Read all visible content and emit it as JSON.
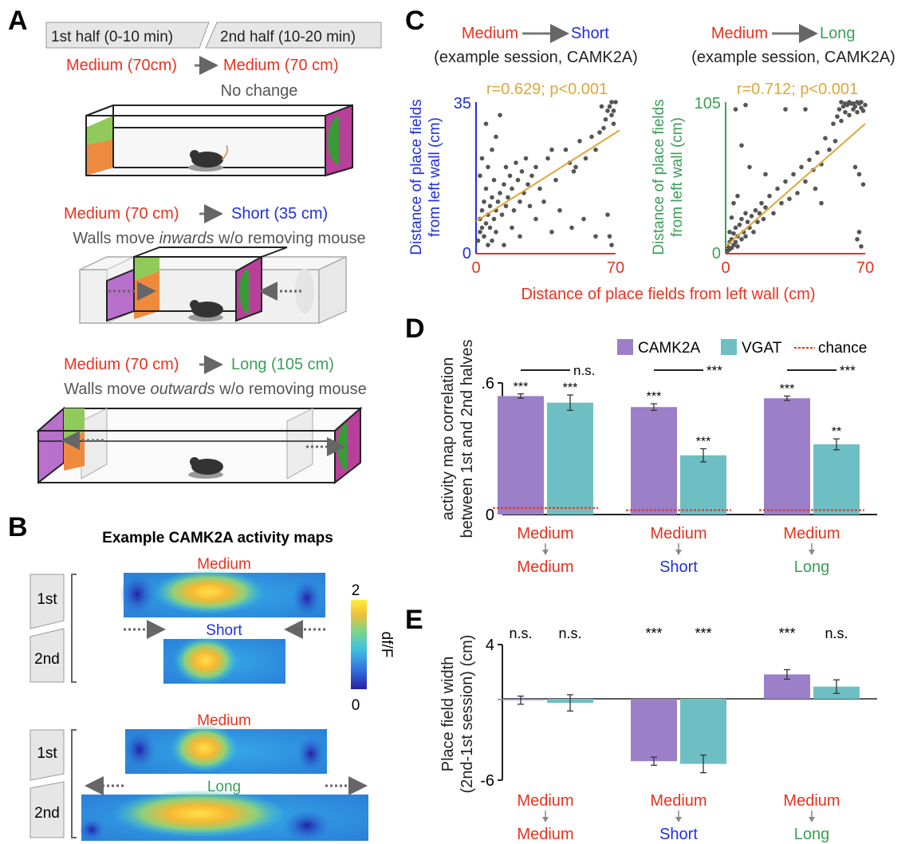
{
  "colors": {
    "red": "#e8321e",
    "blue": "#1f2fe0",
    "green": "#3a9e58",
    "gold": "#e0a736",
    "purple": "#9b7fc8",
    "teal": "#6dbfc3",
    "grey": "#555555",
    "wall_purple": "#b96fcc",
    "wall_green": "#8fca5a",
    "wall_orange": "#ee8a3e",
    "wall_magenta": "#b9409a",
    "wall_darkgreen": "#3a9a3a"
  },
  "panelA": {
    "label": "A",
    "tab1": "1st half (0-10 min)",
    "tab2": "2nd half (10-20 min)",
    "cond1_a": "Medium (70cm)",
    "cond1_b": "Medium (70 cm)",
    "cond1_desc": "No change",
    "cond2_a": "Medium (70 cm)",
    "cond2_b": "Short (35 cm)",
    "cond2_desc_1": "Walls move ",
    "cond2_desc_em": "inwards",
    "cond2_desc_2": " w/o removing mouse",
    "cond3_a": "Medium (70 cm)",
    "cond3_b": "Long (105 cm)",
    "cond3_desc_1": "Walls move ",
    "cond3_desc_em": "outwards",
    "cond3_desc_2": " w/o removing mouse"
  },
  "panelB": {
    "label": "B",
    "title": "Example CAMK2A activity maps",
    "top_label": "Medium",
    "short_label": "Short",
    "bottom_label": "Medium",
    "long_label": "Long",
    "half1": "1st",
    "half2": "2nd",
    "half3": "1st",
    "half4": "2nd",
    "cbar_max": "2",
    "cbar_min": "0",
    "cbar_label": "df/F"
  },
  "panelC": {
    "label": "C",
    "left_from": "Medium",
    "left_to": "Short",
    "right_from": "Medium",
    "right_to": "Long",
    "subtitle": "(example session, CAMK2A)",
    "left_stats": "r=0.629; p<0.001",
    "right_stats": "r=0.712; p<0.001",
    "ylabel_1": "Distance of place fields",
    "ylabel_2": "from left wall (cm)",
    "xlabel": "Distance of place fields from left wall (cm)"
  },
  "panelD": {
    "label": "D",
    "ylabel_1": "activity map correlation",
    "ylabel_2": "between 1st and 2nd halves",
    "legend_camk": "CAMK2A",
    "legend_vgat": "VGAT",
    "legend_chance": "chance",
    "sig_bars": [
      "***",
      "***",
      "***",
      "***",
      "***",
      "**"
    ],
    "sig_pairs": [
      "n.s.",
      "***",
      "***"
    ]
  },
  "panelE": {
    "label": "E",
    "ylabel_1": "Place field width",
    "ylabel_2": "(2nd-1st session) (cm)",
    "sig": [
      "n.s.",
      "n.s.",
      "***",
      "***",
      "***",
      "n.s."
    ]
  },
  "group_labels": [
    {
      "top": "Medium",
      "bottom": "Medium",
      "bottom_color": "red"
    },
    {
      "top": "Medium",
      "bottom": "Short",
      "bottom_color": "blue"
    },
    {
      "top": "Medium",
      "bottom": "Long",
      "bottom_color": "green"
    }
  ],
  "chart_data": [
    {
      "type": "scatter",
      "title": "Medium → Short (example session, CAMK2A)",
      "xlabel": "Distance of place fields from left wall (cm)",
      "ylabel": "Distance of place fields from left wall (cm)",
      "xlim": [
        0,
        70
      ],
      "ylim": [
        0,
        35
      ],
      "xticks": [
        "0",
        "70"
      ],
      "yticks": [
        "0",
        "35"
      ],
      "annotation": "r=0.629; p<0.001",
      "fit_line": {
        "x": [
          0,
          72
        ],
        "y": [
          7.5,
          28.5
        ]
      },
      "points": [
        [
          1,
          3
        ],
        [
          2,
          5
        ],
        [
          2,
          8
        ],
        [
          3,
          6
        ],
        [
          3,
          10
        ],
        [
          4,
          4
        ],
        [
          4,
          12
        ],
        [
          5,
          7
        ],
        [
          5,
          15
        ],
        [
          6,
          9
        ],
        [
          6,
          20
        ],
        [
          7,
          6
        ],
        [
          7,
          11
        ],
        [
          8,
          13
        ],
        [
          8,
          24
        ],
        [
          9,
          8
        ],
        [
          9,
          17
        ],
        [
          10,
          10
        ],
        [
          10,
          27
        ],
        [
          11,
          12
        ],
        [
          12,
          14
        ],
        [
          12,
          32
        ],
        [
          13,
          9
        ],
        [
          14,
          16
        ],
        [
          15,
          11
        ],
        [
          15,
          20
        ],
        [
          16,
          13
        ],
        [
          17,
          18
        ],
        [
          18,
          15
        ],
        [
          19,
          10
        ],
        [
          20,
          21
        ],
        [
          21,
          17
        ],
        [
          22,
          12
        ],
        [
          23,
          19
        ],
        [
          24,
          14
        ],
        [
          25,
          22
        ],
        [
          26,
          16
        ],
        [
          27,
          11
        ],
        [
          28,
          18
        ],
        [
          30,
          20
        ],
        [
          32,
          15
        ],
        [
          34,
          12
        ],
        [
          36,
          22
        ],
        [
          38,
          24
        ],
        [
          40,
          17
        ],
        [
          42,
          10
        ],
        [
          45,
          24
        ],
        [
          47,
          21
        ],
        [
          49,
          19
        ],
        [
          50,
          20
        ],
        [
          52,
          26
        ],
        [
          55,
          22
        ],
        [
          58,
          27
        ],
        [
          60,
          24
        ],
        [
          62,
          28
        ],
        [
          63,
          34
        ],
        [
          64,
          29
        ],
        [
          65,
          31
        ],
        [
          66,
          33
        ],
        [
          67,
          34
        ],
        [
          68,
          32
        ],
        [
          68,
          35
        ],
        [
          69,
          30
        ],
        [
          69,
          33
        ],
        [
          70,
          35
        ],
        [
          66,
          9
        ],
        [
          67,
          4
        ],
        [
          68,
          2
        ],
        [
          5,
          30
        ],
        [
          3,
          22
        ],
        [
          2,
          18
        ],
        [
          6,
          2
        ],
        [
          8,
          3
        ],
        [
          10,
          5
        ],
        [
          14,
          2
        ],
        [
          18,
          6
        ],
        [
          22,
          4
        ],
        [
          30,
          8
        ],
        [
          38,
          5
        ],
        [
          48,
          6
        ],
        [
          54,
          8
        ],
        [
          60,
          4
        ]
      ]
    },
    {
      "type": "scatter",
      "title": "Medium → Long (example session, CAMK2A)",
      "xlabel": "Distance of place fields from left wall (cm)",
      "ylabel": "Distance of place fields from left wall (cm)",
      "xlim": [
        0,
        70
      ],
      "ylim": [
        0,
        105
      ],
      "xticks": [
        "0",
        "70"
      ],
      "yticks": [
        "0",
        "105"
      ],
      "annotation": "r=0.712; p<0.001",
      "fit_line": {
        "x": [
          0,
          70
        ],
        "y": [
          5,
          90
        ]
      },
      "points": [
        [
          1,
          2
        ],
        [
          1,
          5
        ],
        [
          2,
          3
        ],
        [
          2,
          8
        ],
        [
          3,
          4
        ],
        [
          3,
          10
        ],
        [
          4,
          6
        ],
        [
          4,
          14
        ],
        [
          5,
          8
        ],
        [
          5,
          18
        ],
        [
          6,
          5
        ],
        [
          6,
          12
        ],
        [
          7,
          20
        ],
        [
          8,
          10
        ],
        [
          8,
          24
        ],
        [
          9,
          15
        ],
        [
          10,
          12
        ],
        [
          10,
          28
        ],
        [
          11,
          22
        ],
        [
          12,
          18
        ],
        [
          13,
          26
        ],
        [
          14,
          15
        ],
        [
          15,
          30
        ],
        [
          16,
          22
        ],
        [
          17,
          28
        ],
        [
          18,
          35
        ],
        [
          19,
          24
        ],
        [
          20,
          32
        ],
        [
          22,
          40
        ],
        [
          24,
          28
        ],
        [
          26,
          45
        ],
        [
          28,
          35
        ],
        [
          30,
          50
        ],
        [
          32,
          38
        ],
        [
          34,
          55
        ],
        [
          36,
          42
        ],
        [
          38,
          60
        ],
        [
          40,
          50
        ],
        [
          42,
          65
        ],
        [
          44,
          58
        ],
        [
          46,
          70
        ],
        [
          48,
          62
        ],
        [
          50,
          80
        ],
        [
          52,
          72
        ],
        [
          54,
          90
        ],
        [
          55,
          78
        ],
        [
          56,
          95
        ],
        [
          57,
          100
        ],
        [
          58,
          92
        ],
        [
          59,
          102
        ],
        [
          60,
          98
        ],
        [
          61,
          103
        ],
        [
          62,
          96
        ],
        [
          63,
          104
        ],
        [
          64,
          100
        ],
        [
          65,
          102
        ],
        [
          66,
          98
        ],
        [
          67,
          104
        ],
        [
          68,
          101
        ],
        [
          69,
          99
        ],
        [
          70,
          103
        ],
        [
          58,
          105
        ],
        [
          60,
          104
        ],
        [
          62,
          105
        ],
        [
          64,
          104
        ],
        [
          66,
          105
        ],
        [
          68,
          105
        ],
        [
          45,
          45
        ],
        [
          30,
          100
        ],
        [
          40,
          100
        ],
        [
          5,
          100
        ],
        [
          10,
          103
        ],
        [
          8,
          75
        ],
        [
          12,
          60
        ],
        [
          20,
          55
        ],
        [
          66,
          10
        ],
        [
          67,
          15
        ],
        [
          68,
          5
        ],
        [
          65,
          60
        ],
        [
          67,
          55
        ],
        [
          69,
          48
        ],
        [
          6,
          40
        ],
        [
          2,
          15
        ],
        [
          3,
          25
        ],
        [
          4,
          35
        ],
        [
          48,
          35
        ]
      ]
    },
    {
      "type": "bar",
      "categories": [
        "Medium→Medium",
        "Medium→Short",
        "Medium→Long"
      ],
      "series": [
        {
          "name": "CAMK2A",
          "values": [
            0.54,
            0.49,
            0.53
          ],
          "errors": [
            0.01,
            0.015,
            0.01
          ]
        },
        {
          "name": "VGAT",
          "values": [
            0.51,
            0.27,
            0.32
          ],
          "errors": [
            0.035,
            0.03,
            0.025
          ]
        },
        {
          "name": "chance",
          "values": [
            0.03,
            0.02,
            0.02
          ]
        }
      ],
      "ylabel": "activity map correlation between 1st and 2nd halves",
      "ylim": [
        0,
        0.6
      ],
      "yticks": [
        ".6",
        "0"
      ],
      "legend": "top-right"
    },
    {
      "type": "bar",
      "categories": [
        "Medium→Medium",
        "Medium→Short",
        "Medium→Long"
      ],
      "series": [
        {
          "values": [
            -0.1,
            -4.6,
            1.8
          ],
          "errors": [
            0.3,
            0.3,
            0.35
          ]
        },
        {
          "values": [
            -0.3,
            -4.8,
            0.9
          ],
          "errors": [
            0.6,
            0.65,
            0.5
          ]
        }
      ],
      "ylabel": "Place field width (2nd-1st session) (cm)",
      "ylim": [
        -6,
        4
      ],
      "yticks": [
        "4",
        "-6"
      ]
    }
  ]
}
